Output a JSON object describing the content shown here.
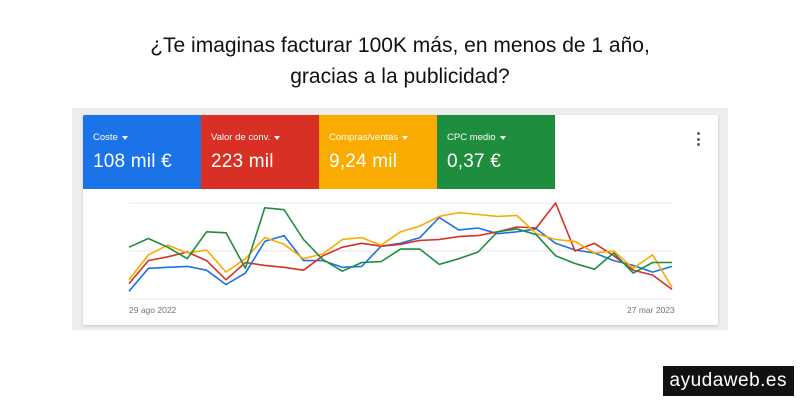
{
  "headline": {
    "line1": "¿Te imaginas facturar 100K más, en menos de 1 año,",
    "line2": "gracias a la publicidad?"
  },
  "metrics": [
    {
      "label": "Coste",
      "value": "108 mil €",
      "color": "#1a73e8"
    },
    {
      "label": "Valor de conv.",
      "value": "223 mil",
      "color": "#d93025"
    },
    {
      "label": "Compras/ventas",
      "value": "9,24 mil",
      "color": "#f9ab00"
    },
    {
      "label": "CPC medio",
      "value": "0,37 €",
      "color": "#1e8e3e"
    }
  ],
  "more_icon": "more-vert-icon",
  "chart_data": {
    "type": "line",
    "x_start_label": "29 ago 2022",
    "x_end_label": "27 mar 2023",
    "series": [
      {
        "color": "#1a73e8",
        "values": [
          8,
          32,
          33,
          34,
          30,
          15,
          27,
          60,
          66,
          40,
          40,
          33,
          34,
          55,
          58,
          64,
          85,
          72,
          74,
          68,
          70,
          73,
          58,
          51,
          48,
          40,
          35,
          28,
          34
        ]
      },
      {
        "color": "#d93025",
        "values": [
          16,
          40,
          44,
          49,
          40,
          20,
          38,
          35,
          33,
          30,
          45,
          54,
          58,
          55,
          57,
          61,
          62,
          65,
          66,
          70,
          75,
          74,
          100,
          50,
          58,
          45,
          30,
          25,
          10
        ]
      },
      {
        "color": "#f9ab00",
        "values": [
          20,
          46,
          56,
          48,
          51,
          28,
          42,
          64,
          57,
          42,
          47,
          62,
          64,
          56,
          70,
          76,
          86,
          90,
          88,
          86,
          87,
          68,
          62,
          60,
          48,
          50,
          32,
          46,
          12
        ]
      },
      {
        "color": "#1e8e3e",
        "values": [
          54,
          63,
          54,
          42,
          70,
          69,
          32,
          95,
          93,
          62,
          41,
          29,
          38,
          39,
          52,
          52,
          36,
          42,
          49,
          70,
          73,
          67,
          45,
          37,
          31,
          48,
          27,
          38,
          38
        ]
      }
    ]
  },
  "watermark": "ayudaweb.es"
}
